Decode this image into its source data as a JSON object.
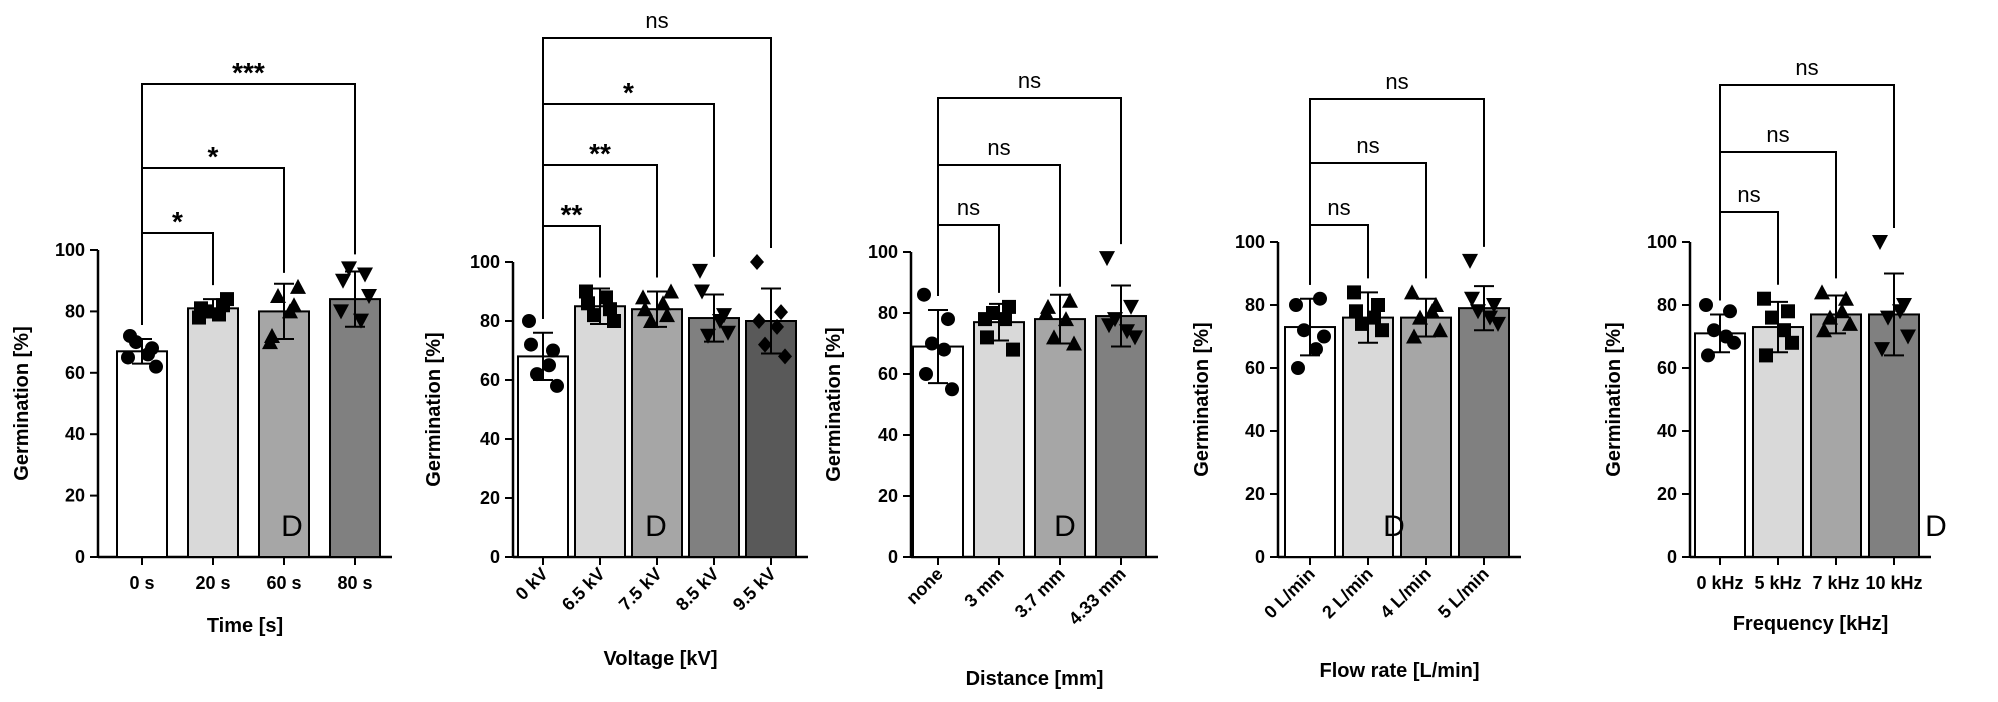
{
  "figure": {
    "panel_tag": "D"
  },
  "chart_data": [
    {
      "type": "bar",
      "xlabel": "Time [s]",
      "ylabel": "Germination [%]",
      "ylim": [
        0,
        100
      ],
      "yticks": [
        0,
        20,
        40,
        60,
        80,
        100
      ],
      "categories": [
        "0 s",
        "20 s",
        "60 s",
        "80 s"
      ],
      "values": [
        67,
        81,
        80,
        84
      ],
      "errors": [
        4,
        3,
        9,
        9
      ],
      "marker_shapes": [
        "circle",
        "square",
        "triangle-up",
        "triangle-down"
      ],
      "bar_colors": [
        "#ffffff",
        "#d9d9d9",
        "#a6a6a6",
        "#808080"
      ],
      "points": [
        [
          65,
          68,
          70,
          62,
          72,
          66
        ],
        [
          78,
          82,
          80,
          84,
          81,
          79
        ],
        [
          70,
          82,
          85,
          88,
          72,
          80
        ],
        [
          80,
          92,
          94,
          85,
          90,
          77
        ]
      ],
      "comparisons": [
        {
          "from": 0,
          "to": 1,
          "label": "*"
        },
        {
          "from": 0,
          "to": 2,
          "label": "*"
        },
        {
          "from": 0,
          "to": 3,
          "label": "***"
        }
      ]
    },
    {
      "type": "bar",
      "xlabel": "Voltage [kV]",
      "ylabel": "Germination [%]",
      "ylim": [
        0,
        100
      ],
      "yticks": [
        0,
        20,
        40,
        60,
        80,
        100
      ],
      "categories": [
        "0 kV",
        "6.5 kV",
        "7.5 kV",
        "8.5 kV",
        "9.5 kV"
      ],
      "values": [
        68,
        85,
        84,
        81,
        80
      ],
      "errors": [
        8,
        6,
        6,
        8,
        11
      ],
      "marker_shapes": [
        "circle",
        "square",
        "triangle-up",
        "triangle-down",
        "diamond"
      ],
      "bar_colors": [
        "#ffffff",
        "#d9d9d9",
        "#a6a6a6",
        "#808080",
        "#595959"
      ],
      "points": [
        [
          80,
          70,
          62,
          58,
          72,
          65
        ],
        [
          90,
          84,
          82,
          80,
          86,
          88
        ],
        [
          88,
          82,
          80,
          90,
          84,
          86
        ],
        [
          97,
          82,
          75,
          76,
          90,
          80
        ],
        [
          100,
          83,
          72,
          68,
          80,
          78
        ]
      ],
      "comparisons": [
        {
          "from": 0,
          "to": 1,
          "label": "**"
        },
        {
          "from": 0,
          "to": 2,
          "label": "**"
        },
        {
          "from": 0,
          "to": 3,
          "label": "*"
        },
        {
          "from": 0,
          "to": 4,
          "label": "ns"
        }
      ]
    },
    {
      "type": "bar",
      "xlabel": "Distance [mm]",
      "ylabel": "Germination [%]",
      "ylim": [
        0,
        100
      ],
      "yticks": [
        0,
        20,
        40,
        60,
        80,
        100
      ],
      "categories": [
        "none",
        "3 mm",
        "3.7 mm",
        "4.33 mm"
      ],
      "values": [
        69,
        77,
        78,
        79
      ],
      "errors": [
        12,
        6,
        8,
        10
      ],
      "marker_shapes": [
        "circle",
        "square",
        "triangle-up",
        "triangle-down"
      ],
      "bar_colors": [
        "#ffffff",
        "#d9d9d9",
        "#a6a6a6",
        "#808080"
      ],
      "points": [
        [
          86,
          78,
          70,
          55,
          60,
          68
        ],
        [
          78,
          82,
          80,
          68,
          72,
          78
        ],
        [
          80,
          84,
          72,
          70,
          82,
          78
        ],
        [
          98,
          82,
          78,
          72,
          76,
          74
        ]
      ],
      "comparisons": [
        {
          "from": 0,
          "to": 1,
          "label": "ns"
        },
        {
          "from": 0,
          "to": 2,
          "label": "ns"
        },
        {
          "from": 0,
          "to": 3,
          "label": "ns"
        }
      ]
    },
    {
      "type": "bar",
      "xlabel": "Flow rate [L/min]",
      "ylabel": "Germination [%]",
      "ylim": [
        0,
        100
      ],
      "yticks": [
        0,
        20,
        40,
        60,
        80,
        100
      ],
      "categories": [
        "0 L/min",
        "2 L/min",
        "4 L/min",
        "5 L/min"
      ],
      "values": [
        73,
        76,
        76,
        79
      ],
      "errors": [
        9,
        8,
        6,
        7
      ],
      "marker_shapes": [
        "circle",
        "square",
        "triangle-up",
        "triangle-down"
      ],
      "bar_colors": [
        "#ffffff",
        "#d9d9d9",
        "#a6a6a6",
        "#808080"
      ],
      "points": [
        [
          80,
          82,
          72,
          70,
          60,
          66
        ],
        [
          84,
          80,
          74,
          72,
          78,
          76
        ],
        [
          84,
          80,
          76,
          72,
          70,
          78
        ],
        [
          94,
          80,
          78,
          74,
          82,
          76
        ]
      ],
      "comparisons": [
        {
          "from": 0,
          "to": 1,
          "label": "ns"
        },
        {
          "from": 0,
          "to": 2,
          "label": "ns"
        },
        {
          "from": 0,
          "to": 3,
          "label": "ns"
        }
      ]
    },
    {
      "type": "bar",
      "xlabel": "Frequency [kHz]",
      "ylabel": "Germination [%]",
      "ylim": [
        0,
        100
      ],
      "yticks": [
        0,
        20,
        40,
        60,
        80,
        100
      ],
      "categories": [
        "0 kHz",
        "5 kHz",
        "7 kHz",
        "10 kHz"
      ],
      "values": [
        71,
        73,
        77,
        77
      ],
      "errors": [
        6,
        8,
        6,
        13
      ],
      "marker_shapes": [
        "circle",
        "square",
        "triangle-up",
        "triangle-down"
      ],
      "bar_colors": [
        "#ffffff",
        "#d9d9d9",
        "#a6a6a6",
        "#808080"
      ],
      "points": [
        [
          80,
          78,
          72,
          68,
          64,
          70
        ],
        [
          82,
          78,
          76,
          68,
          64,
          72
        ],
        [
          84,
          82,
          76,
          74,
          72,
          78
        ],
        [
          100,
          80,
          76,
          70,
          66,
          78
        ]
      ],
      "comparisons": [
        {
          "from": 0,
          "to": 1,
          "label": "ns"
        },
        {
          "from": 0,
          "to": 2,
          "label": "ns"
        },
        {
          "from": 0,
          "to": 3,
          "label": "ns"
        }
      ]
    }
  ]
}
